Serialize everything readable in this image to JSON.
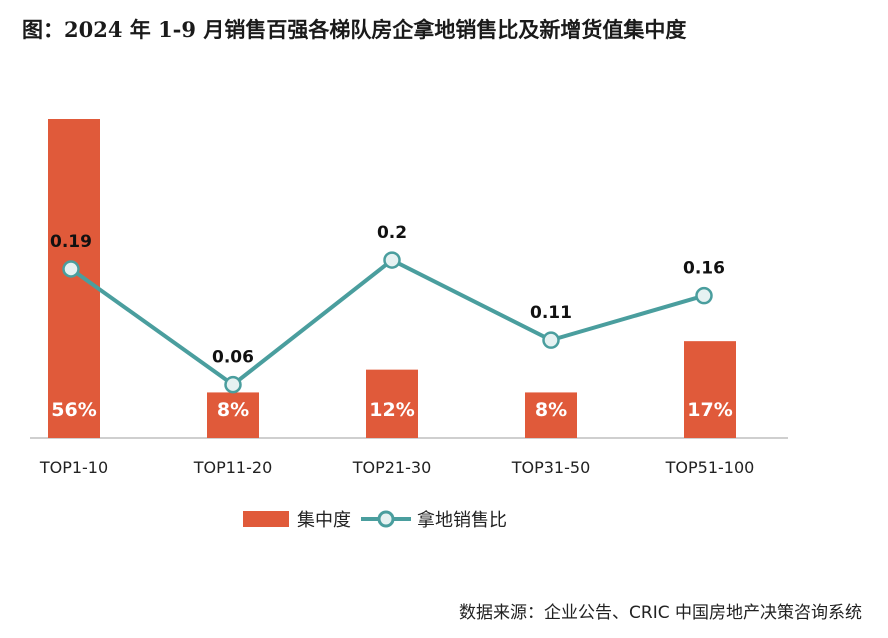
{
  "title": "图：2024 年 1-9 月销售百强各梯队房企拿地销售比及新增货值集中度",
  "source": "数据来源：企业公告、CRIC 中国房地产决策咨询系统",
  "colors": {
    "bar": "#E05A3A",
    "line": "#4A9E9E",
    "axis": "#BFBFBF",
    "bar_label": "#FFFFFF",
    "line_label": "#111111"
  },
  "legend": {
    "bar_label": "集中度",
    "line_label": "拿地销售比"
  },
  "chart_data": {
    "type": "bar",
    "categories": [
      "TOP1-10",
      "TOP11-20",
      "TOP21-30",
      "TOP31-50",
      "TOP51-100"
    ],
    "series": [
      {
        "name": "集中度",
        "type": "bar",
        "values": [
          56,
          8,
          12,
          8,
          17
        ],
        "labels": [
          "56%",
          "8%",
          "12%",
          "8%",
          "17%"
        ]
      },
      {
        "name": "拿地销售比",
        "type": "line",
        "values": [
          0.19,
          0.06,
          0.2,
          0.11,
          0.16
        ],
        "labels": [
          "0.19",
          "0.06",
          "0.2",
          "0.11",
          "0.16"
        ]
      }
    ],
    "title": "图：2024 年 1-9 月销售百强各梯队房企拿地销售比及新增货值集中度",
    "xlabel": "",
    "ylabel": "",
    "bar_ylim": [
      0,
      56
    ],
    "line_ylim": [
      0,
      0.38
    ],
    "grid": false,
    "legend_position": "bottom"
  }
}
